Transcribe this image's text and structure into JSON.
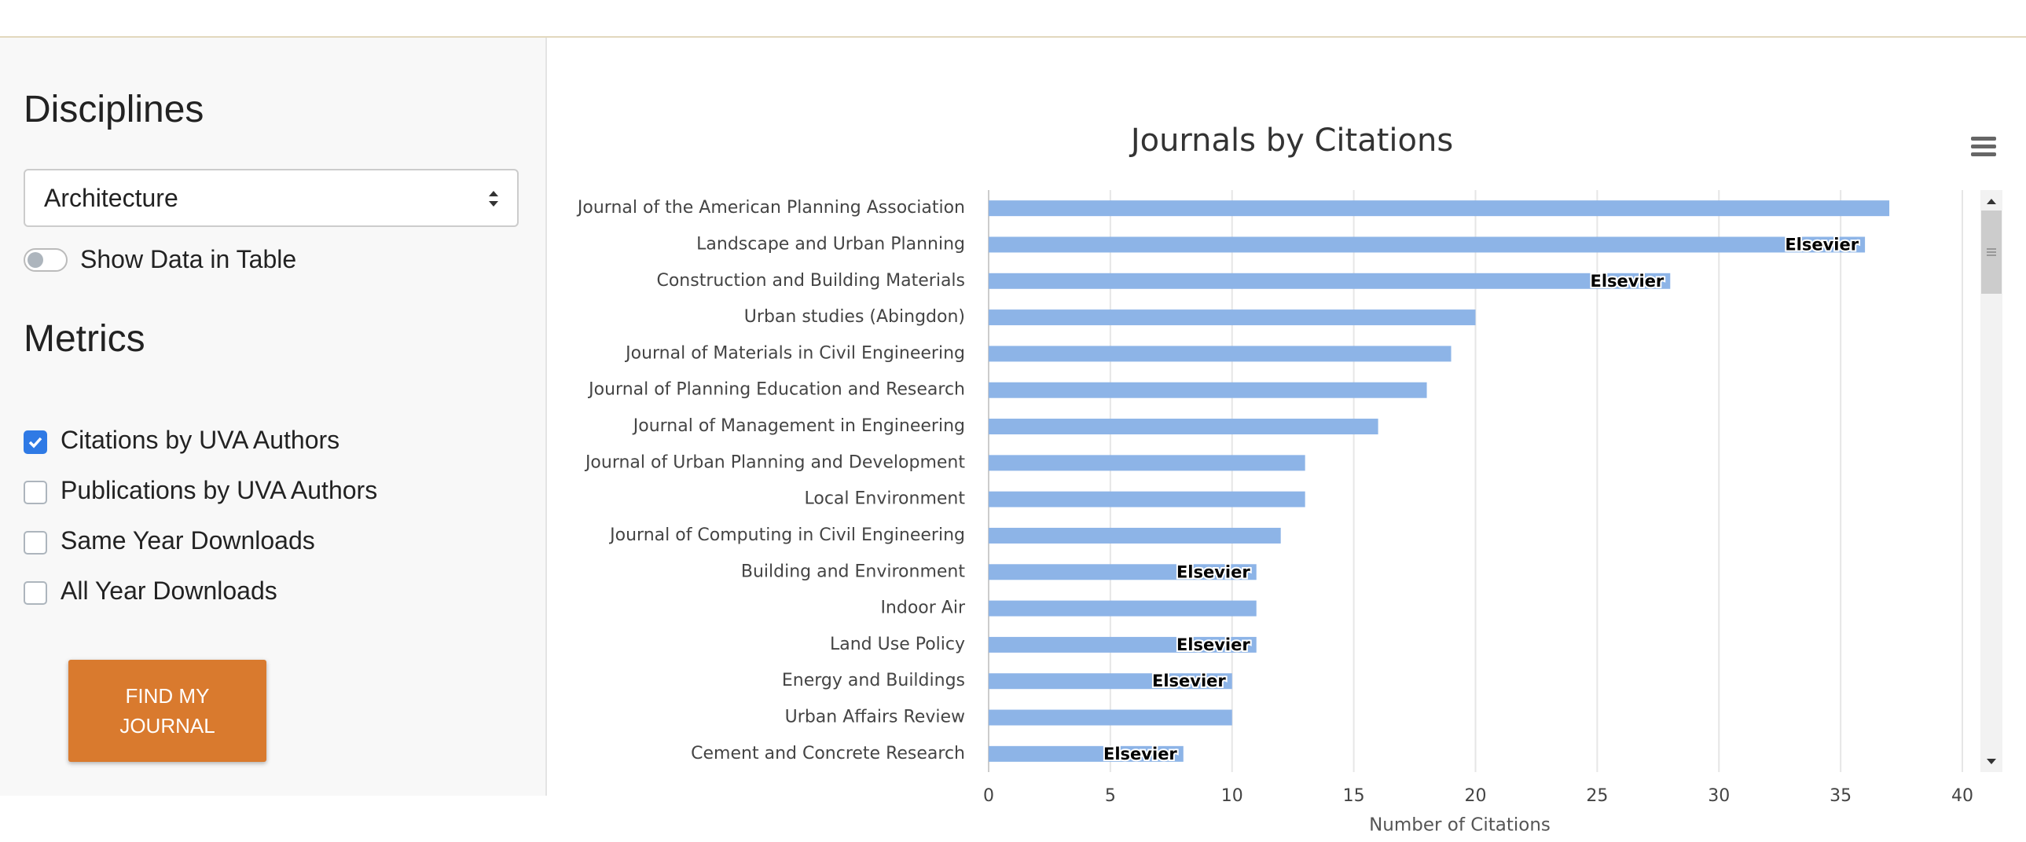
{
  "sidebar": {
    "disciplines_heading": "Disciplines",
    "discipline_select": "Architecture",
    "toggle_label": "Show Data in Table",
    "metrics_heading": "Metrics",
    "metrics": [
      {
        "label": "Citations by UVA Authors",
        "checked": true
      },
      {
        "label": "Publications by UVA Authors",
        "checked": false
      },
      {
        "label": "Same Year Downloads",
        "checked": false
      },
      {
        "label": "All Year Downloads",
        "checked": false
      }
    ],
    "button": "FIND MY JOURNAL"
  },
  "chart_data": {
    "type": "bar",
    "orientation": "horizontal",
    "title": "Journals by Citations",
    "x_label": "Number of Citations",
    "categories": [
      "Journal of the American Planning Association",
      "Landscape and Urban Planning",
      "Construction and Building Materials",
      "Urban studies (Abingdon)",
      "Journal of Materials in Civil Engineering",
      "Journal of Planning Education and Research",
      "Journal of Management in Engineering",
      "Journal of Urban Planning and Development",
      "Local Environment",
      "Journal of Computing in Civil Engineering",
      "Building and Environment",
      "Indoor Air",
      "Land Use Policy",
      "Energy and Buildings",
      "Urban Affairs Review",
      "Cement and Concrete Research"
    ],
    "values": [
      37,
      36,
      28,
      20,
      19,
      18,
      16,
      13,
      13,
      12,
      11,
      11,
      11,
      10,
      10,
      8
    ],
    "data_labels": [
      null,
      "Elsevier",
      "Elsevier",
      null,
      null,
      null,
      null,
      null,
      null,
      null,
      "Elsevier",
      null,
      "Elsevier",
      "Elsevier",
      null,
      "Elsevier"
    ],
    "color": "#8db4e7",
    "xlim": [
      0,
      40
    ],
    "xticks": [
      0,
      5,
      10,
      15,
      20,
      25,
      30,
      35,
      40
    ],
    "grid": true
  }
}
